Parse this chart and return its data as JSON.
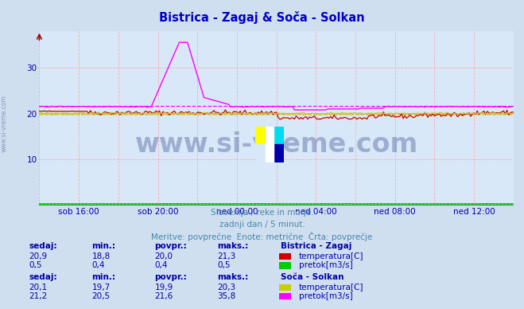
{
  "title": "Bistrica - Zagaj & Soča - Solkan",
  "title_color": "#0000cc",
  "background_color": "#d0dff0",
  "plot_bg_color": "#d8e8f8",
  "grid_color": "#ffaaaa",
  "grid_linestyle": "--",
  "axis_color": "#0000aa",
  "border_color": "#0000aa",
  "xlabel_ticks": [
    "sob 16:00",
    "sob 20:00",
    "ned 00:00",
    "ned 04:00",
    "ned 08:00",
    "ned 12:00"
  ],
  "ylabel_ticks": [
    10,
    20,
    30
  ],
  "ylim": [
    0,
    38
  ],
  "xlim": [
    0,
    288
  ],
  "n_points": 289,
  "watermark_text": "www.si-vreme.com",
  "watermark_color": "#334488",
  "watermark_alpha": 0.35,
  "subtitle_lines": [
    "Slovenija / reke in morje.",
    "zadnji dan / 5 minut.",
    "Meritve: povprečne  Enote: metrične  Črta: povprečje"
  ],
  "subtitle_color": "#4488aa",
  "legend_title1": "Bistrica - Zagaj",
  "legend_title2": "Soča - Solkan",
  "legend_color": "#0000aa",
  "table_header": [
    "sedaj:",
    "min.:",
    "povpr.:",
    "maks.:"
  ],
  "bistrica_temp_stats": [
    "20,9",
    "18,8",
    "20,0",
    "21,3"
  ],
  "bistrica_pretok_stats": [
    "0,5",
    "0,4",
    "0,4",
    "0,5"
  ],
  "soca_temp_stats": [
    "20,1",
    "19,7",
    "19,9",
    "20,3"
  ],
  "soca_pretok_stats": [
    "21,2",
    "20,5",
    "21,6",
    "35,8"
  ],
  "bistrica_temp_color": "#cc0000",
  "bistrica_pretok_color": "#00cc00",
  "soca_temp_color": "#cccc00",
  "soca_pretok_color": "#ff00ff",
  "bistrica_temp_avg": 20.0,
  "bistrica_pretok_avg": 0.4,
  "soca_temp_avg": 19.9,
  "soca_pretok_avg": 21.6,
  "tick_label_color": "#0000aa",
  "side_label": "www.si-vreme.com",
  "side_label_color": "#8899bb",
  "xaxis_line_color": "#00aa00",
  "yaxis_arrow_color": "#aa0000"
}
